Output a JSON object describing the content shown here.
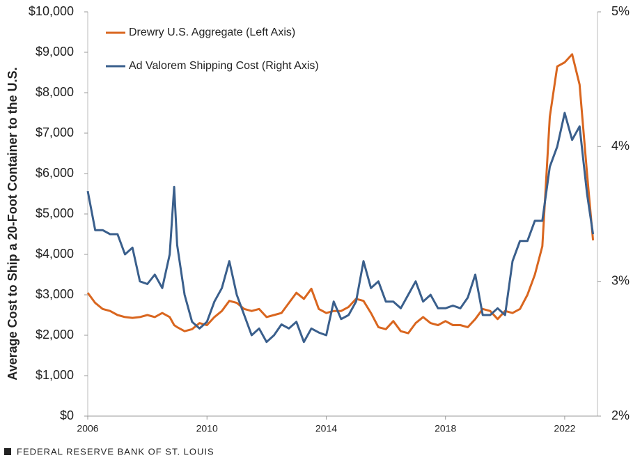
{
  "chart_data": {
    "type": "line",
    "y_label": "Average Cost to Ship a 20-Foot Container to the U.S.",
    "footer": "FEDERAL RESERVE BANK OF ST. LOUIS",
    "x": [
      2006,
      2006.25,
      2006.5,
      2006.75,
      2007,
      2007.25,
      2007.5,
      2007.75,
      2008,
      2008.25,
      2008.5,
      2008.75,
      2008.9,
      2009,
      2009.25,
      2009.5,
      2009.75,
      2010,
      2010.25,
      2010.5,
      2010.75,
      2011,
      2011.25,
      2011.5,
      2011.75,
      2012,
      2012.25,
      2012.5,
      2012.75,
      2013,
      2013.25,
      2013.5,
      2013.75,
      2014,
      2014.25,
      2014.5,
      2014.75,
      2015,
      2015.25,
      2015.5,
      2015.75,
      2016,
      2016.25,
      2016.5,
      2016.75,
      2017,
      2017.25,
      2017.5,
      2017.75,
      2018,
      2018.25,
      2018.5,
      2018.75,
      2019,
      2019.25,
      2019.5,
      2019.75,
      2020,
      2020.25,
      2020.5,
      2020.75,
      2021,
      2021.25,
      2021.5,
      2021.75,
      2022,
      2022.25,
      2022.5,
      2022.75,
      2022.95
    ],
    "series": [
      {
        "name": "Drewry U.S. Aggregate (Left Axis)",
        "color": "#d9661f",
        "axis": "y",
        "values": [
          3050,
          2800,
          2650,
          2600,
          2500,
          2450,
          2430,
          2450,
          2500,
          2450,
          2550,
          2450,
          2250,
          2200,
          2100,
          2150,
          2300,
          2250,
          2450,
          2600,
          2850,
          2800,
          2650,
          2600,
          2650,
          2450,
          2500,
          2550,
          2800,
          3050,
          2900,
          3150,
          2650,
          2550,
          2600,
          2600,
          2700,
          2900,
          2850,
          2550,
          2200,
          2150,
          2350,
          2100,
          2050,
          2300,
          2450,
          2300,
          2250,
          2350,
          2250,
          2250,
          2200,
          2400,
          2650,
          2600,
          2400,
          2600,
          2550,
          2650,
          3000,
          3500,
          4200,
          7400,
          8650,
          8750,
          8950,
          8200,
          6000,
          4350
        ]
      },
      {
        "name": "Ad Valorem Shipping Cost (Right Axis)",
        "color": "#3a5f8c",
        "axis": "y2",
        "values": [
          3.67,
          3.38,
          3.38,
          3.35,
          3.35,
          3.2,
          3.25,
          3.0,
          2.98,
          3.05,
          2.95,
          3.2,
          3.7,
          3.27,
          2.9,
          2.7,
          2.65,
          2.7,
          2.85,
          2.95,
          3.15,
          2.9,
          2.75,
          2.6,
          2.65,
          2.55,
          2.6,
          2.68,
          2.65,
          2.7,
          2.55,
          2.65,
          2.62,
          2.6,
          2.85,
          2.72,
          2.75,
          2.85,
          3.15,
          2.95,
          3.0,
          2.85,
          2.85,
          2.8,
          2.9,
          3.0,
          2.85,
          2.9,
          2.8,
          2.8,
          2.82,
          2.8,
          2.88,
          3.05,
          2.75,
          2.75,
          2.8,
          2.75,
          3.15,
          3.3,
          3.3,
          3.45,
          3.45,
          3.85,
          4.0,
          4.25,
          4.05,
          4.15,
          3.65,
          3.35
        ]
      }
    ],
    "xlim": [
      2006,
      2023.1
    ],
    "xticks": [
      2006,
      2010,
      2014,
      2018,
      2022
    ],
    "ylim": [
      0,
      10000
    ],
    "yticks": [
      {
        "value": 0,
        "label": "$0"
      },
      {
        "value": 1000,
        "label": "$1,000"
      },
      {
        "value": 2000,
        "label": "$2,000"
      },
      {
        "value": 3000,
        "label": "$3,000"
      },
      {
        "value": 4000,
        "label": "$4,000"
      },
      {
        "value": 5000,
        "label": "$5,000"
      },
      {
        "value": 6000,
        "label": "$6,000"
      },
      {
        "value": 7000,
        "label": "$7,000"
      },
      {
        "value": 8000,
        "label": "$8,000"
      },
      {
        "value": 9000,
        "label": "$9,000"
      },
      {
        "value": 10000,
        "label": "$10,000"
      }
    ],
    "y2lim": [
      2,
      5
    ],
    "y2ticks": [
      {
        "value": 2,
        "label": "2%"
      },
      {
        "value": 3,
        "label": "3%"
      },
      {
        "value": 4,
        "label": "4%"
      },
      {
        "value": 5,
        "label": "5%"
      }
    ],
    "legend": "upper left"
  }
}
